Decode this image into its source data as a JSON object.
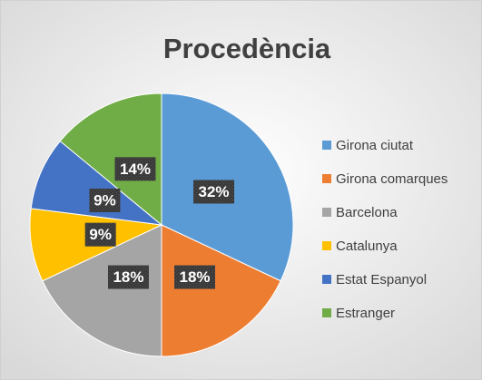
{
  "chart_data": {
    "type": "pie",
    "title": "Procedència",
    "categories": [
      "Girona ciutat",
      "Girona comarques",
      "Barcelona",
      "Catalunya",
      "Estat Espanyol",
      "Estranger"
    ],
    "values": [
      32,
      18,
      18,
      9,
      9,
      14
    ],
    "value_labels": [
      "32%",
      "18%",
      "18%",
      "9%",
      "9%",
      "14%"
    ],
    "colors": [
      "#5b9bd5",
      "#ed7d31",
      "#a5a5a5",
      "#ffc000",
      "#4472c4",
      "#70ad47"
    ],
    "legend": "right"
  }
}
